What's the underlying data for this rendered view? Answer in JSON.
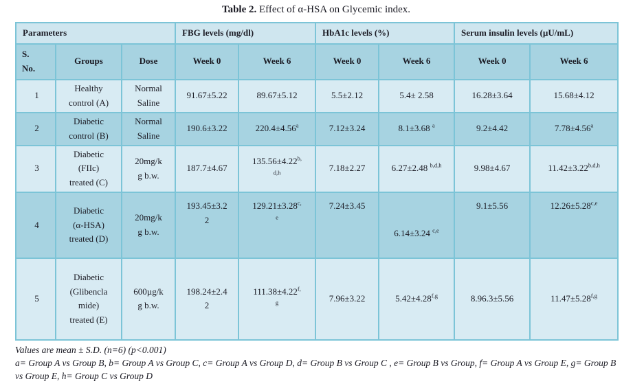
{
  "title": {
    "prefix": "Table 2.",
    "rest": " Effect of α-HSA on Glycemic index."
  },
  "colors": {
    "border": "#7cc4d7",
    "row_light": "#d8ebf3",
    "row_dark": "#a7d3e1",
    "header": "#cfe6ef",
    "text": "#1b1b24"
  },
  "table": {
    "header_groups": [
      {
        "label": "Parameters",
        "span": 3
      },
      {
        "label": "FBG levels (mg/dl)",
        "span": 2
      },
      {
        "label": "HbA1c levels (%)",
        "span": 2
      },
      {
        "label": "Serum insulin levels (µU/mL)",
        "span": 2
      }
    ],
    "sub_headers": [
      "S.|No.",
      "Groups",
      "Dose",
      "Week 0",
      "Week 6",
      "Week 0",
      "Week 6",
      "Week 0",
      "Week 6"
    ],
    "rows": [
      {
        "shade": "light",
        "cells": [
          "1",
          "Healthy|control (A)",
          "Normal|Saline",
          "91.67±5.22",
          "89.67±5.12",
          "5.5±2.12",
          "5.4± 2.58",
          "16.28±3.64",
          "15.68±4.12"
        ]
      },
      {
        "shade": "dark",
        "cells": [
          "2",
          "Diabetic|control (B)",
          "Normal|Saline",
          "190.6±3.22",
          "220.4±4.56^{a}",
          "7.12±3.24",
          "8.1±3.68 ^{a}",
          "9.2±4.42",
          "7.78±4.56^{a}"
        ]
      },
      {
        "shade": "light",
        "cells": [
          "3",
          "Diabetic|(FIIc)|treated (C)",
          "20mg/k|g b.w.",
          "187.7±4.67",
          "135.56±4.22^{b,}|^{d,h}",
          "7.18±2.27",
          "6.27±2.48 ^{b,d,h}",
          "9.98±4.67",
          "11.42±3.22^{b,d,h}"
        ]
      },
      {
        "shade": "dark",
        "cells": [
          "4",
          "Diabetic|(α-HSA)|treated (D)",
          "20mg/k|g b.w.",
          "193.45±3.2|2",
          "129.21±3.28^{c,}|^{e}",
          "7.24±3.45",
          "6.14±3.24 ^{c,e}",
          "9.1±5.56",
          "12.26±5.28^{c,e}"
        ]
      },
      {
        "shade": "light",
        "cells": [
          "5",
          "Diabetic|(Glibencla|mide)|treated (E)",
          "600µg/k|g b.w.",
          "198.24±2.4|2",
          "111.38±4.22^{f,}|^{g}",
          "7.96±3.22",
          "5.42±4.28^{f,g}",
          "8.96.3±5.56",
          "11.47±5.28^{f,g}"
        ]
      }
    ]
  },
  "footnotes": [
    "Values are mean ± S.D. (n=6) (p<0.001)",
    "a= Group A vs Group B, b= Group A vs Group C, c= Group A vs Group D, d= Group B vs Group C , e= Group B vs Group, f= Group A vs Group E, g= Group B vs Group E, h= Group C  vs Group D"
  ]
}
